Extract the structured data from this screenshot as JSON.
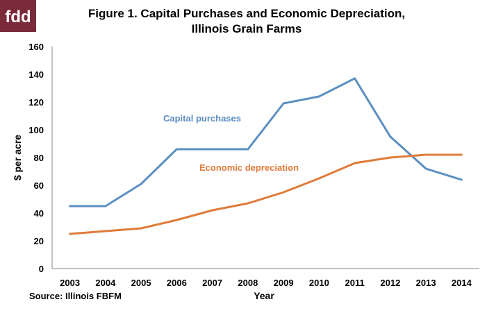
{
  "logo": {
    "text": "fdd",
    "color": "#7b2a3a"
  },
  "source": "Source:  Illinois FBFM",
  "colors": {
    "capital": "#5b8fc2",
    "depreciation": "#e07b3a"
  },
  "chart_data": {
    "type": "line",
    "title": "Figure 1. Capital Purchases and Economic Depreciation,",
    "subtitle": "Illinois Grain Farms",
    "xlabel": "Year",
    "ylabel": "$ per acre",
    "ylim": [
      0,
      160
    ],
    "yticks": [
      0,
      20,
      40,
      60,
      80,
      100,
      120,
      140,
      160
    ],
    "grid": false,
    "legend": "inline labels",
    "categories": [
      "2003",
      "2004",
      "2005",
      "2006",
      "2007",
      "2008",
      "2009",
      "2010",
      "2011",
      "2012",
      "2013",
      "2014"
    ],
    "series": [
      {
        "name": "Capital purchases",
        "values": [
          45,
          45,
          61,
          86,
          86,
          86,
          119,
          124,
          137,
          95,
          72,
          64
        ]
      },
      {
        "name": "Economic depreciation",
        "values": [
          25,
          27,
          29,
          35,
          42,
          47,
          55,
          65,
          76,
          80,
          82,
          82
        ]
      }
    ]
  }
}
